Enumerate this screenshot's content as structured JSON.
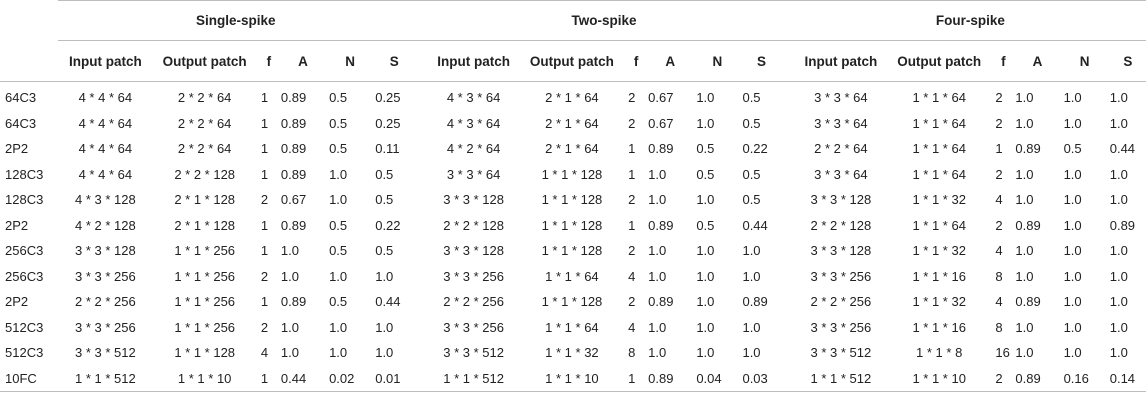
{
  "groups": [
    "Single-spike",
    "Two-spike",
    "Four-spike"
  ],
  "columns": [
    "Input patch",
    "Output patch",
    "f",
    "A",
    "N",
    "S"
  ],
  "rows": [
    {
      "layer": "64C3",
      "cells": [
        "4 * 4 * 64",
        "2 * 2 * 64",
        "1",
        "0.89",
        "0.5",
        "0.25",
        "4 * 3 * 64",
        "2 * 1 * 64",
        "2",
        "0.67",
        "1.0",
        "0.5",
        "3 * 3 * 64",
        "1 * 1 * 64",
        "2",
        "1.0",
        "1.0",
        "1.0"
      ]
    },
    {
      "layer": "64C3",
      "cells": [
        "4 * 4 * 64",
        "2 * 2 * 64",
        "1",
        "0.89",
        "0.5",
        "0.25",
        "4 * 3 * 64",
        "2 * 1 * 64",
        "2",
        "0.67",
        "1.0",
        "0.5",
        "3 * 3 * 64",
        "1 * 1 * 64",
        "2",
        "1.0",
        "1.0",
        "1.0"
      ]
    },
    {
      "layer": "2P2",
      "cells": [
        "4 * 4 * 64",
        "2 * 2 * 64",
        "1",
        "0.89",
        "0.5",
        "0.11",
        "4 * 2 * 64",
        "2 * 1 * 64",
        "1",
        "0.89",
        "0.5",
        "0.22",
        "2 * 2 * 64",
        "1 * 1 * 64",
        "1",
        "0.89",
        "0.5",
        "0.44"
      ]
    },
    {
      "layer": "128C3",
      "cells": [
        "4 * 4 * 64",
        "2 * 2 * 128",
        "1",
        "0.89",
        "1.0",
        "0.5",
        "3 * 3 * 64",
        "1 * 1 * 128",
        "1",
        "1.0",
        "0.5",
        "0.5",
        "3 * 3 * 64",
        "1 * 1 * 64",
        "2",
        "1.0",
        "1.0",
        "1.0"
      ]
    },
    {
      "layer": "128C3",
      "cells": [
        "4 * 3 * 128",
        "2 * 1 * 128",
        "2",
        "0.67",
        "1.0",
        "0.5",
        "3 * 3 * 128",
        "1 * 1 * 128",
        "2",
        "1.0",
        "1.0",
        "0.5",
        "3 * 3 * 128",
        "1 * 1 * 32",
        "4",
        "1.0",
        "1.0",
        "1.0"
      ]
    },
    {
      "layer": "2P2",
      "cells": [
        "4 * 2 * 128",
        "2 * 1 * 128",
        "1",
        "0.89",
        "0.5",
        "0.22",
        "2 * 2 * 128",
        "1 * 1 * 128",
        "1",
        "0.89",
        "0.5",
        "0.44",
        "2 * 2 * 128",
        "1 * 1 * 64",
        "2",
        "0.89",
        "1.0",
        "0.89"
      ]
    },
    {
      "layer": "256C3",
      "cells": [
        "3 * 3 * 128",
        "1 * 1 * 256",
        "1",
        "1.0",
        "0.5",
        "0.5",
        "3 * 3 * 128",
        "1 * 1 * 128",
        "2",
        "1.0",
        "1.0",
        "1.0",
        "3 * 3 * 128",
        "1 * 1 * 32",
        "4",
        "1.0",
        "1.0",
        "1.0"
      ]
    },
    {
      "layer": "256C3",
      "cells": [
        "3 * 3 * 256",
        "1 * 1 * 256",
        "2",
        "1.0",
        "1.0",
        "1.0",
        "3 * 3 * 256",
        "1 * 1 * 64",
        "4",
        "1.0",
        "1.0",
        "1.0",
        "3 * 3 * 256",
        "1 * 1 * 16",
        "8",
        "1.0",
        "1.0",
        "1.0"
      ]
    },
    {
      "layer": "2P2",
      "cells": [
        "2 * 2 * 256",
        "1 * 1 * 256",
        "1",
        "0.89",
        "0.5",
        "0.44",
        "2 * 2 * 256",
        "1 * 1 * 128",
        "2",
        "0.89",
        "1.0",
        "0.89",
        "2 * 2 * 256",
        "1 * 1 * 32",
        "4",
        "0.89",
        "1.0",
        "1.0"
      ]
    },
    {
      "layer": "512C3",
      "cells": [
        "3 * 3 * 256",
        "1 * 1 * 256",
        "2",
        "1.0",
        "1.0",
        "1.0",
        "3 * 3 * 256",
        "1 * 1 * 64",
        "4",
        "1.0",
        "1.0",
        "1.0",
        "3 * 3 * 256",
        "1 * 1 * 16",
        "8",
        "1.0",
        "1.0",
        "1.0"
      ]
    },
    {
      "layer": "512C3",
      "cells": [
        "3 * 3 * 512",
        "1 * 1 * 128",
        "4",
        "1.0",
        "1.0",
        "1.0",
        "3 * 3 * 512",
        "1 * 1 * 32",
        "8",
        "1.0",
        "1.0",
        "1.0",
        "3 * 3 * 512",
        "1 * 1 * 8",
        "16",
        "1.0",
        "1.0",
        "1.0"
      ]
    },
    {
      "layer": "10FC",
      "cells": [
        "1 * 1 * 512",
        "1 * 1 * 10",
        "1",
        "0.44",
        "0.02",
        "0.01",
        "1 * 1 * 512",
        "1 * 1 * 10",
        "1",
        "0.89",
        "0.04",
        "0.03",
        "1 * 1 * 512",
        "1 * 1 * 10",
        "2",
        "0.89",
        "0.16",
        "0.14"
      ]
    }
  ]
}
